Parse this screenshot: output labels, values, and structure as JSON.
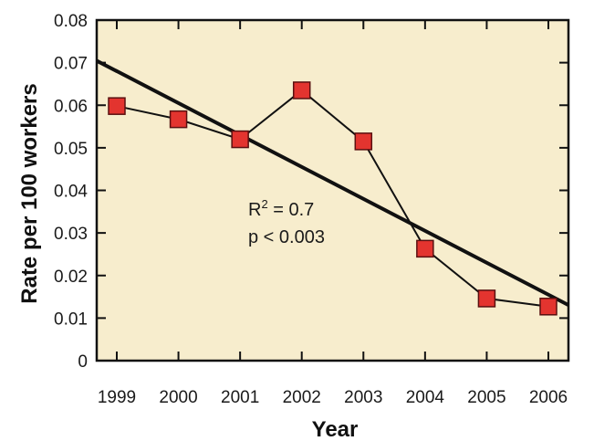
{
  "chart_data": {
    "type": "line",
    "title": "",
    "xlabel": "Year",
    "ylabel": "Rate per 100 workers",
    "x": [
      1999,
      2000,
      2001,
      2002,
      2003,
      2004,
      2005,
      2006
    ],
    "x_tick_labels": [
      "1999",
      "2000",
      "2001",
      "2002",
      "2003",
      "2004",
      "2005",
      "2006"
    ],
    "y_tick_labels": [
      "0",
      "0.01",
      "0.02",
      "0.03",
      "0.04",
      "0.05",
      "0.06",
      "0.07",
      "0.08"
    ],
    "xlim": [
      1999,
      2006
    ],
    "ylim": [
      0,
      0.08
    ],
    "series": [
      {
        "values": [
          0.0598,
          0.0567,
          0.052,
          0.0635,
          0.0515,
          0.0263,
          0.0146,
          0.0127
        ]
      }
    ],
    "trendline": {
      "x": [
        1999,
        2006
      ],
      "values": [
        0.068,
        0.0155
      ]
    },
    "annotation": {
      "r2_prefix": "R",
      "r2_sup": "2",
      "r2_suffix": " = 0.7",
      "p": "p < 0.003"
    },
    "grid": false,
    "colors": {
      "background": "#f7edcd",
      "marker": "#e3342f",
      "line": "#111111"
    }
  }
}
